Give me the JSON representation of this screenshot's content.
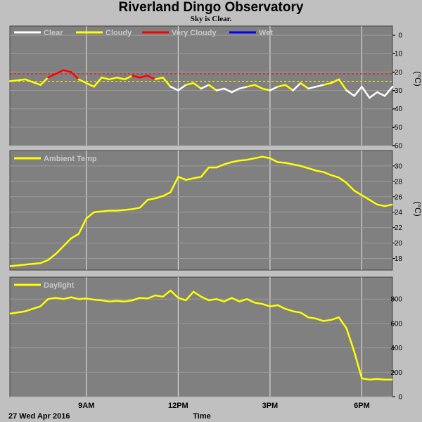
{
  "title": "Riverland Dingo Observatory",
  "subtitle": "Sky is Clear.",
  "footer": {
    "date": "27 Wed Apr 2016",
    "xlabel": "Time"
  },
  "colors": {
    "background": "#c0c0c0",
    "plot_bg": "#808080",
    "clear": "#ffffff",
    "cloudy": "#ffff00",
    "very_cloudy": "#ff0000",
    "wet": "#0000ff",
    "threshold_red": "#ff0000",
    "threshold_yellow": "#ffff00"
  },
  "chart_data": [
    {
      "type": "line",
      "name": "cloud-panel",
      "legend": [
        "Clear",
        "Cloudy",
        "Very Cloudy",
        "Wet"
      ],
      "ylim": [
        -60,
        5
      ],
      "yticks": [
        "0",
        "-10",
        "-20",
        "-30",
        "-40",
        "-50",
        "-60"
      ],
      "ytick_values": [
        0,
        -10,
        -20,
        -30,
        -40,
        -50,
        -60
      ],
      "unit": "(°C)",
      "thresholds": [
        -21,
        -25
      ],
      "x": [
        6.5,
        7.0,
        7.5,
        7.75,
        8.0,
        8.25,
        8.5,
        8.75,
        9.0,
        9.25,
        9.5,
        9.75,
        10.0,
        10.25,
        10.5,
        10.75,
        11.0,
        11.25,
        11.5,
        11.75,
        12.0,
        12.25,
        12.5,
        12.75,
        13.0,
        13.25,
        13.5,
        13.75,
        14.0,
        14.25,
        14.5,
        14.75,
        15.0,
        15.25,
        15.5,
        15.75,
        16.0,
        16.25,
        16.5,
        16.75,
        17.0,
        17.25,
        17.5,
        17.75,
        18.0,
        18.25,
        18.5,
        18.75,
        19.0
      ],
      "values": [
        -25,
        -24,
        -27,
        -23,
        -21,
        -19,
        -20,
        -24,
        -26,
        -28,
        -23,
        -24,
        -23,
        -24,
        -22,
        -23,
        -22,
        -24,
        -23,
        -28,
        -30,
        -27,
        -26,
        -29,
        -27,
        -30,
        -29,
        -31,
        -29,
        -28,
        -27,
        -29,
        -30,
        -28,
        -27,
        -30,
        -26,
        -29,
        -28,
        -27,
        -26,
        -24,
        -30,
        -33,
        -28,
        -34,
        -31,
        -33,
        -28
      ],
      "states": [
        "cloudy",
        "cloudy",
        "cloudy",
        "very_cloudy",
        "very_cloudy",
        "very_cloudy",
        "very_cloudy",
        "cloudy",
        "cloudy",
        "cloudy",
        "cloudy",
        "cloudy",
        "cloudy",
        "cloudy",
        "very_cloudy",
        "very_cloudy",
        "very_cloudy",
        "cloudy",
        "cloudy",
        "clear",
        "clear",
        "cloudy",
        "cloudy",
        "clear",
        "cloudy",
        "clear",
        "clear",
        "clear",
        "clear",
        "cloudy",
        "cloudy",
        "cloudy",
        "clear",
        "cloudy",
        "cloudy",
        "clear",
        "cloudy",
        "clear",
        "clear",
        "cloudy",
        "cloudy",
        "cloudy",
        "clear",
        "clear",
        "clear",
        "clear",
        "clear",
        "clear",
        "cloudy"
      ]
    },
    {
      "type": "line",
      "name": "temp-panel",
      "legend": [
        "Ambient Temp"
      ],
      "ylim": [
        16.5,
        32
      ],
      "yticks": [
        "18",
        "20",
        "22",
        "24",
        "26",
        "28",
        "30"
      ],
      "ytick_values": [
        18,
        20,
        22,
        24,
        26,
        28,
        30
      ],
      "unit": "(°C)",
      "x": [
        6.5,
        7.0,
        7.5,
        7.75,
        8.0,
        8.25,
        8.5,
        8.75,
        9.0,
        9.25,
        9.5,
        9.75,
        10.0,
        10.25,
        10.5,
        10.75,
        11.0,
        11.25,
        11.5,
        11.75,
        12.0,
        12.25,
        12.5,
        12.75,
        13.0,
        13.25,
        13.5,
        13.75,
        14.0,
        14.25,
        14.5,
        14.75,
        15.0,
        15.25,
        15.5,
        15.75,
        16.0,
        16.25,
        16.5,
        16.75,
        17.0,
        17.25,
        17.5,
        17.75,
        18.0,
        18.25,
        18.5,
        18.75,
        19.0
      ],
      "values": [
        17.0,
        17.2,
        17.4,
        17.8,
        18.6,
        19.6,
        20.6,
        21.2,
        23.2,
        24.0,
        24.1,
        24.2,
        24.2,
        24.3,
        24.4,
        24.6,
        25.6,
        25.8,
        26.1,
        26.6,
        28.6,
        28.2,
        28.4,
        28.6,
        29.8,
        29.8,
        30.2,
        30.5,
        30.7,
        30.8,
        31.0,
        31.2,
        31.0,
        30.5,
        30.4,
        30.2,
        30.0,
        29.7,
        29.4,
        29.2,
        28.8,
        28.5,
        27.8,
        26.8,
        26.2,
        25.6,
        25.0,
        24.8,
        25.0
      ]
    },
    {
      "type": "line",
      "name": "daylight-panel",
      "legend": [
        "Daylight"
      ],
      "ylim": [
        0,
        980
      ],
      "yticks": [
        "0",
        "200",
        "400",
        "600",
        "800"
      ],
      "ytick_values": [
        0,
        200,
        400,
        600,
        800
      ],
      "unit": "",
      "x": [
        6.5,
        7.0,
        7.5,
        7.75,
        8.0,
        8.25,
        8.5,
        8.75,
        9.0,
        9.25,
        9.5,
        9.75,
        10.0,
        10.25,
        10.5,
        10.75,
        11.0,
        11.25,
        11.5,
        11.75,
        12.0,
        12.25,
        12.5,
        12.75,
        13.0,
        13.25,
        13.5,
        13.75,
        14.0,
        14.25,
        14.5,
        14.75,
        15.0,
        15.25,
        15.5,
        15.75,
        16.0,
        16.25,
        16.5,
        16.75,
        17.0,
        17.25,
        17.5,
        17.75,
        18.0,
        18.25,
        18.5,
        18.75,
        19.0
      ],
      "values": [
        680,
        700,
        740,
        800,
        810,
        800,
        815,
        800,
        805,
        795,
        790,
        780,
        785,
        780,
        790,
        810,
        805,
        830,
        820,
        870,
        810,
        790,
        860,
        820,
        790,
        800,
        780,
        810,
        780,
        800,
        770,
        760,
        740,
        750,
        720,
        700,
        690,
        650,
        640,
        620,
        630,
        650,
        560,
        370,
        150,
        140,
        145,
        140,
        140
      ]
    }
  ],
  "xaxis": {
    "range": [
      6.5,
      19.0
    ],
    "ticks": [
      "9AM",
      "12PM",
      "3PM",
      "6PM"
    ],
    "tick_values": [
      9,
      12,
      15,
      18
    ]
  }
}
